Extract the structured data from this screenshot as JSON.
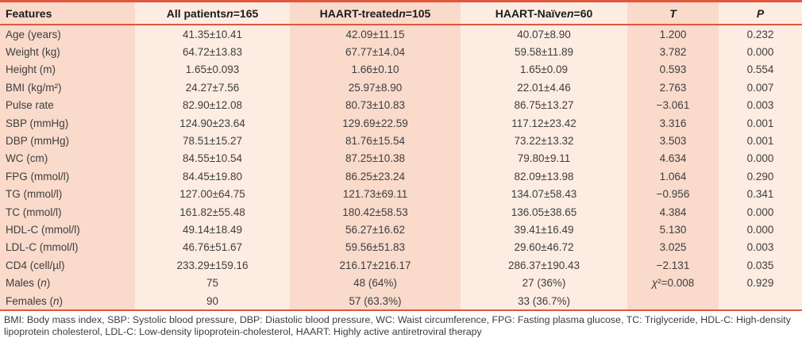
{
  "colors": {
    "accent": "#e0573e",
    "band_dark": "#f9dacb",
    "band_light": "#fdece2"
  },
  "table": {
    "columns": [
      {
        "key": "features",
        "label": "Features"
      },
      {
        "key": "all-patients",
        "label": "All patients n=165"
      },
      {
        "key": "haart-treated",
        "label": "HAART-treated n=105"
      },
      {
        "key": "haart-naive",
        "label": "HAART-Naïve n=60"
      },
      {
        "key": "t",
        "label": "T"
      },
      {
        "key": "p",
        "label": "P"
      }
    ],
    "rows": [
      [
        "Age (years)",
        "41.35±10.41",
        "42.09±11.15",
        "40.07±8.90",
        "1.200",
        "0.232"
      ],
      [
        "Weight (kg)",
        "64.72±13.83",
        "67.77±14.04",
        "59.58±11.89",
        "3.782",
        "0.000"
      ],
      [
        "Height (m)",
        "1.65±0.093",
        "1.66±0.10",
        "1.65±0.09",
        "0.593",
        "0.554"
      ],
      [
        "BMI (kg/m²)",
        "24.27±7.56",
        "25.97±8.90",
        "22.01±4.46",
        "2.763",
        "0.007"
      ],
      [
        "Pulse rate",
        "82.90±12.08",
        "80.73±10.83",
        "86.75±13.27",
        "−3.061",
        "0.003"
      ],
      [
        "SBP (mmHg)",
        "124.90±23.64",
        "129.69±22.59",
        "117.12±23.42",
        "3.316",
        "0.001"
      ],
      [
        "DBP (mmHg)",
        "78.51±15.27",
        "81.76±15.54",
        "73.22±13.32",
        "3.503",
        "0.001"
      ],
      [
        "WC (cm)",
        "84.55±10.54",
        "87.25±10.38",
        "79.80±9.11",
        "4.634",
        "0.000"
      ],
      [
        "FPG (mmol/l)",
        "84.45±19.80",
        "86.25±23.24",
        "82.09±13.98",
        "1.064",
        "0.290"
      ],
      [
        "TG (mmol/l)",
        "127.00±64.75",
        "121.73±69.11",
        "134.07±58.43",
        "−0.956",
        "0.341"
      ],
      [
        "TC (mmol/l)",
        "161.82±55.48",
        "180.42±58.53",
        "136.05±38.65",
        "4.384",
        "0.000"
      ],
      [
        "HDL-C (mmol/l)",
        "49.14±18.49",
        "56.27±16.62",
        "39.41±16.49",
        "5.130",
        "0.000"
      ],
      [
        "LDL-C (mmol/l)",
        "46.76±51.67",
        "59.56±51.83",
        "29.60±46.72",
        "3.025",
        "0.003"
      ],
      [
        "CD4 (cell/µl)",
        "233.29±159.16",
        "216.17±216.17",
        "286.37±190.43",
        "−2.131",
        "0.035"
      ],
      [
        "Males (n)",
        "75",
        "48 (64%)",
        "27 (36%)",
        "χ²=0.008",
        "0.929"
      ],
      [
        "Females (n)",
        "90",
        "57 (63.3%)",
        "33 (36.7%)",
        "",
        ""
      ]
    ]
  },
  "footnote": "BMI: Body mass index, SBP: Systolic blood pressure, DBP: Diastolic blood pressure, WC: Waist circumference, FPG: Fasting plasma glucose, TC: Triglyceride, HDL-C: High-density lipoprotein cholesterol, LDL-C: Low-density lipoprotein-cholesterol, HAART: Highly active antiretroviral therapy"
}
